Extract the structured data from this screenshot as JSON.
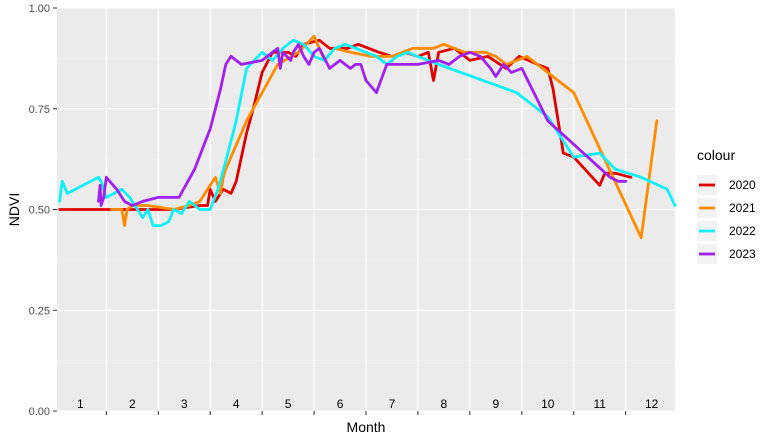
{
  "chart_data": {
    "type": "line",
    "xlabel": "Month",
    "ylabel": "NDVI",
    "xlim": [
      0.55,
      12.45
    ],
    "ylim": [
      0.0,
      1.0
    ],
    "y_ticks": [
      "0.00",
      "0.25",
      "0.50",
      "0.75",
      "1.00"
    ],
    "x_tick_labels": [
      "1",
      "2",
      "3",
      "4",
      "5",
      "6",
      "7",
      "8",
      "9",
      "10",
      "11",
      "12"
    ],
    "background": "#ebebeb",
    "grid": true,
    "legend": {
      "title": "colour",
      "position": "right"
    },
    "series": [
      {
        "name": "2020",
        "color": "#e00000",
        "x": [
          0.6,
          1.1,
          1.9,
          2.8,
          3.3,
          3.45,
          3.5,
          3.6,
          3.75,
          3.9,
          4.0,
          4.2,
          4.35,
          4.5,
          4.7,
          5.0,
          5.15,
          5.3,
          5.6,
          5.8,
          6.0,
          6.15,
          6.35,
          6.55,
          6.75,
          7.0,
          7.25,
          7.5,
          7.7,
          7.8,
          7.9,
          8.2,
          8.5,
          8.85,
          9.2,
          9.45,
          9.8,
          10.0,
          10.1,
          10.3,
          10.5,
          11.0,
          11.1,
          11.3,
          11.6
        ],
        "values": [
          0.5,
          0.5,
          0.5,
          0.5,
          0.51,
          0.51,
          0.55,
          0.52,
          0.55,
          0.54,
          0.57,
          0.69,
          0.76,
          0.84,
          0.89,
          0.89,
          0.88,
          0.91,
          0.92,
          0.9,
          0.9,
          0.9,
          0.91,
          0.9,
          0.89,
          0.88,
          0.89,
          0.88,
          0.89,
          0.82,
          0.89,
          0.9,
          0.87,
          0.88,
          0.85,
          0.88,
          0.86,
          0.85,
          0.8,
          0.64,
          0.63,
          0.56,
          0.59,
          0.59,
          0.58
        ]
      },
      {
        "name": "2021",
        "color": "#ff8c00",
        "x": [
          1.6,
          1.8,
          1.85,
          1.9,
          2.0,
          2.3,
          2.8,
          3.1,
          3.3,
          3.6,
          3.7,
          3.75,
          3.8,
          4.2,
          4.8,
          5.2,
          5.5,
          5.7,
          5.9,
          6.2,
          6.6,
          7.0,
          7.4,
          7.8,
          8.0,
          8.4,
          8.8,
          9.0,
          9.2,
          9.6,
          10.5,
          11.8,
          12.1
        ],
        "values": [
          0.5,
          0.5,
          0.46,
          0.5,
          0.51,
          0.51,
          0.5,
          0.51,
          0.52,
          0.58,
          0.54,
          0.58,
          0.6,
          0.72,
          0.86,
          0.89,
          0.93,
          0.87,
          0.9,
          0.89,
          0.88,
          0.88,
          0.9,
          0.9,
          0.91,
          0.89,
          0.89,
          0.88,
          0.86,
          0.88,
          0.79,
          0.43,
          0.72
        ]
      },
      {
        "name": "2022",
        "color": "#10f0f8",
        "x": [
          0.6,
          0.65,
          0.75,
          1.35,
          1.4,
          1.45,
          1.5,
          1.65,
          1.8,
          1.95,
          2.1,
          2.2,
          2.3,
          2.4,
          2.55,
          2.7,
          2.8,
          2.95,
          3.1,
          3.3,
          3.5,
          3.65,
          3.8,
          4.0,
          4.2,
          4.5,
          4.7,
          4.9,
          5.1,
          5.3,
          5.5,
          5.7,
          5.9,
          6.1,
          6.3,
          6.5,
          6.7,
          6.9,
          7.1,
          7.3,
          7.5,
          7.7,
          7.9,
          9.4,
          10.0,
          10.5,
          11.0,
          11.3,
          11.8,
          12.3,
          12.45
        ],
        "values": [
          0.52,
          0.57,
          0.54,
          0.58,
          0.57,
          0.55,
          0.53,
          0.54,
          0.55,
          0.53,
          0.5,
          0.48,
          0.5,
          0.46,
          0.46,
          0.47,
          0.5,
          0.49,
          0.52,
          0.5,
          0.5,
          0.55,
          0.62,
          0.72,
          0.85,
          0.89,
          0.87,
          0.9,
          0.92,
          0.91,
          0.88,
          0.87,
          0.9,
          0.91,
          0.9,
          0.89,
          0.88,
          0.86,
          0.88,
          0.89,
          0.88,
          0.87,
          0.86,
          0.79,
          0.73,
          0.63,
          0.64,
          0.6,
          0.58,
          0.55,
          0.51
        ]
      },
      {
        "name": "2023",
        "color": "#a020f0",
        "x": [
          1.35,
          1.38,
          1.4,
          1.45,
          1.5,
          1.7,
          1.85,
          2.0,
          2.2,
          2.5,
          2.7,
          2.9,
          3.2,
          3.5,
          3.7,
          3.8,
          3.9,
          4.1,
          4.5,
          4.8,
          4.85,
          4.9,
          5.05,
          5.1,
          5.2,
          5.3,
          5.4,
          5.5,
          5.6,
          5.8,
          5.9,
          6.0,
          6.2,
          6.3,
          6.4,
          6.5,
          6.7,
          6.9,
          7.0,
          7.1,
          7.5,
          7.9,
          8.1,
          8.3,
          8.5,
          8.7,
          8.9,
          9.0,
          9.15,
          9.3,
          9.5,
          10.0,
          11.2,
          11.35,
          11.5
        ],
        "values": [
          0.52,
          0.56,
          0.51,
          0.53,
          0.58,
          0.55,
          0.52,
          0.51,
          0.52,
          0.53,
          0.53,
          0.53,
          0.6,
          0.7,
          0.8,
          0.86,
          0.88,
          0.86,
          0.87,
          0.9,
          0.85,
          0.89,
          0.87,
          0.89,
          0.91,
          0.88,
          0.86,
          0.89,
          0.9,
          0.85,
          0.86,
          0.87,
          0.85,
          0.86,
          0.86,
          0.82,
          0.79,
          0.86,
          0.86,
          0.86,
          0.86,
          0.87,
          0.86,
          0.88,
          0.89,
          0.88,
          0.85,
          0.83,
          0.86,
          0.84,
          0.85,
          0.72,
          0.58,
          0.57,
          0.57
        ]
      }
    ]
  }
}
